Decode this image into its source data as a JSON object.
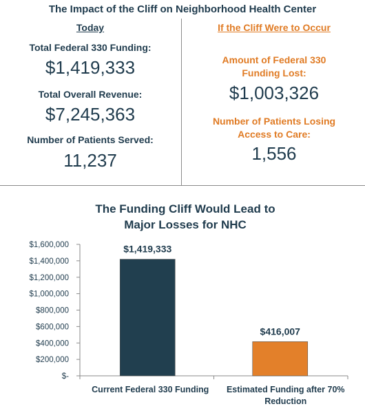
{
  "header": {
    "title": "The Impact of the Cliff on Neighborhood Health Center"
  },
  "today": {
    "heading": "Today",
    "funding_label": "Total Federal 330 Funding:",
    "funding_value": "$1,419,333",
    "revenue_label": "Total Overall Revenue:",
    "revenue_value": "$7,245,363",
    "patients_label": "Number of Patients Served:",
    "patients_value": "11,237"
  },
  "cliff": {
    "heading": "If the Cliff Were to Occur",
    "lost_label_1": "Amount of Federal 330",
    "lost_label_2": "Funding Lost:",
    "lost_value": "$1,003,326",
    "patients_label_1": "Number of Patients Losing",
    "patients_label_2": "Access to Care:",
    "patients_value": "1,556"
  },
  "colors": {
    "navy": "#1f3b4d",
    "orange": "#e07b24",
    "bar_navy": "#213f4f",
    "bar_orange": "#e3802a"
  },
  "chart_data": {
    "type": "bar",
    "title": [
      "The Funding Cliff Would Lead to",
      "Major Losses for NHC"
    ],
    "categories": [
      [
        "Current Federal 330 Funding"
      ],
      [
        "Estimated Funding after 70%",
        "Reduction"
      ]
    ],
    "values": [
      1419333,
      416007
    ],
    "value_labels": [
      "$1,419,333",
      "$416,007"
    ],
    "ylim": [
      0,
      1600000
    ],
    "yticks": [
      0,
      200000,
      400000,
      600000,
      800000,
      1000000,
      1200000,
      1400000,
      1600000
    ],
    "ytick_labels": [
      "$-",
      "$200,000",
      "$400,000",
      "$600,000",
      "$800,000",
      "$1,000,000",
      "$1,200,000",
      "$1,400,000",
      "$1,600,000"
    ],
    "grid": false,
    "legend": "none"
  }
}
